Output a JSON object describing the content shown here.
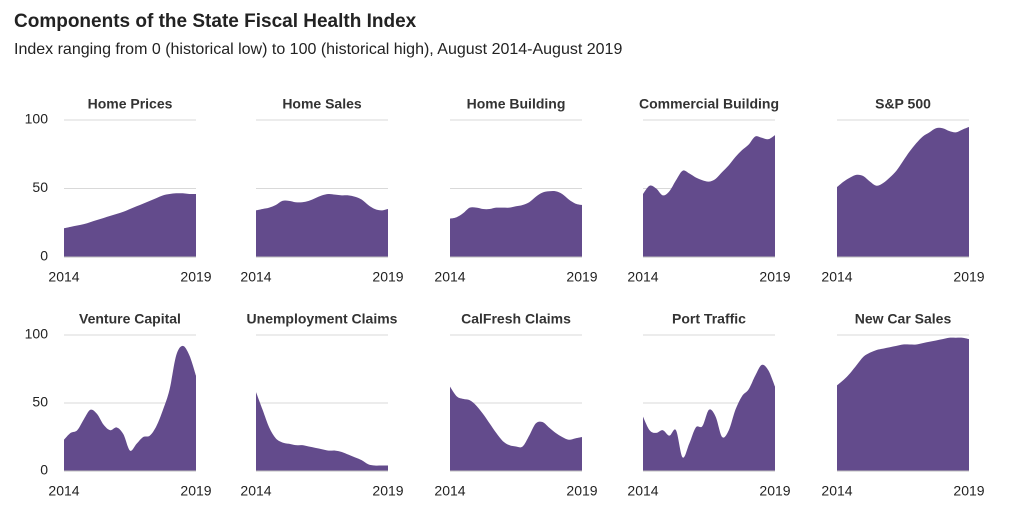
{
  "header": {
    "title": "Components of the State Fiscal Health Index",
    "subtitle": "Index ranging from 0 (historical low) to 100 (historical high), August 2014-August 2019"
  },
  "chart_data": [
    {
      "type": "area",
      "title": "Home Prices",
      "color": "#634b8c",
      "xlim": [
        2014,
        2019
      ],
      "xticks": [
        2014,
        2019
      ],
      "ylim": [
        0,
        100
      ],
      "yticks": [
        0,
        50,
        100
      ],
      "grid": true,
      "x": [
        2014,
        2014.25,
        2014.5,
        2014.75,
        2015,
        2015.25,
        2015.5,
        2015.75,
        2016,
        2016.25,
        2016.5,
        2016.75,
        2017,
        2017.25,
        2017.5,
        2017.75,
        2018,
        2018.25,
        2018.5,
        2018.75,
        2019
      ],
      "values": [
        21,
        22,
        23,
        24,
        25.5,
        27,
        28.5,
        30,
        31.5,
        33,
        35,
        37,
        39,
        41,
        43,
        45,
        46,
        46.5,
        46.5,
        46,
        46
      ]
    },
    {
      "type": "area",
      "title": "Home Sales",
      "color": "#634b8c",
      "xlim": [
        2014,
        2019
      ],
      "xticks": [
        2014,
        2019
      ],
      "ylim": [
        0,
        100
      ],
      "yticks": [
        0,
        50,
        100
      ],
      "grid": true,
      "x": [
        2014,
        2014.25,
        2014.5,
        2014.75,
        2015,
        2015.25,
        2015.5,
        2015.75,
        2016,
        2016.25,
        2016.5,
        2016.75,
        2017,
        2017.25,
        2017.5,
        2017.75,
        2018,
        2018.25,
        2018.5,
        2018.75,
        2019
      ],
      "values": [
        34,
        35,
        36,
        38,
        41,
        41,
        40,
        40,
        41,
        43,
        45,
        46,
        45.5,
        45,
        45,
        44,
        42,
        38,
        35,
        34,
        35
      ]
    },
    {
      "type": "area",
      "title": "Home Building",
      "color": "#634b8c",
      "xlim": [
        2014,
        2019
      ],
      "xticks": [
        2014,
        2019
      ],
      "ylim": [
        0,
        100
      ],
      "yticks": [
        0,
        50,
        100
      ],
      "grid": true,
      "x": [
        2014,
        2014.25,
        2014.5,
        2014.75,
        2015,
        2015.25,
        2015.5,
        2015.75,
        2016,
        2016.25,
        2016.5,
        2016.75,
        2017,
        2017.25,
        2017.5,
        2017.75,
        2018,
        2018.25,
        2018.5,
        2018.75,
        2019
      ],
      "values": [
        28,
        29,
        32,
        36,
        36,
        35,
        35,
        36,
        36,
        36,
        37,
        38,
        40,
        44,
        47,
        48,
        48,
        46,
        42,
        39,
        38
      ]
    },
    {
      "type": "area",
      "title": "Commercial Building",
      "color": "#634b8c",
      "xlim": [
        2014,
        2019
      ],
      "xticks": [
        2014,
        2019
      ],
      "ylim": [
        0,
        100
      ],
      "yticks": [
        0,
        50,
        100
      ],
      "grid": true,
      "x": [
        2014,
        2014.25,
        2014.5,
        2014.75,
        2015,
        2015.25,
        2015.5,
        2015.75,
        2016,
        2016.25,
        2016.5,
        2016.75,
        2017,
        2017.25,
        2017.5,
        2017.75,
        2018,
        2018.25,
        2018.5,
        2018.75,
        2019
      ],
      "values": [
        46,
        52,
        50,
        45,
        48,
        56,
        63,
        61,
        58,
        56,
        55,
        57,
        62,
        67,
        73,
        78,
        82,
        88,
        87,
        86,
        89
      ]
    },
    {
      "type": "area",
      "title": "S&P 500",
      "color": "#634b8c",
      "xlim": [
        2014,
        2019
      ],
      "xticks": [
        2014,
        2019
      ],
      "ylim": [
        0,
        100
      ],
      "yticks": [
        0,
        50,
        100
      ],
      "grid": true,
      "x": [
        2014,
        2014.25,
        2014.5,
        2014.75,
        2015,
        2015.25,
        2015.5,
        2015.75,
        2016,
        2016.25,
        2016.5,
        2016.75,
        2017,
        2017.25,
        2017.5,
        2017.75,
        2018,
        2018.25,
        2018.5,
        2018.75,
        2019
      ],
      "values": [
        51,
        55,
        58,
        60,
        59,
        55,
        52,
        54,
        58,
        63,
        70,
        77,
        83,
        88,
        91,
        94,
        94,
        92,
        91,
        93,
        95
      ]
    },
    {
      "type": "area",
      "title": "Venture Capital",
      "color": "#634b8c",
      "xlim": [
        2014,
        2019
      ],
      "xticks": [
        2014,
        2019
      ],
      "ylim": [
        0,
        100
      ],
      "yticks": [
        0,
        50,
        100
      ],
      "grid": true,
      "x": [
        2014,
        2014.25,
        2014.5,
        2014.75,
        2015,
        2015.25,
        2015.5,
        2015.75,
        2016,
        2016.25,
        2016.5,
        2016.75,
        2017,
        2017.25,
        2017.5,
        2017.75,
        2018,
        2018.25,
        2018.5,
        2018.75,
        2019
      ],
      "values": [
        23,
        28,
        30,
        38,
        45,
        42,
        34,
        30,
        32,
        27,
        15,
        20,
        25,
        26,
        33,
        45,
        60,
        85,
        92,
        85,
        70
      ]
    },
    {
      "type": "area",
      "title": "Unemployment Claims",
      "color": "#634b8c",
      "xlim": [
        2014,
        2019
      ],
      "xticks": [
        2014,
        2019
      ],
      "ylim": [
        0,
        100
      ],
      "yticks": [
        0,
        50,
        100
      ],
      "grid": true,
      "x": [
        2014,
        2014.25,
        2014.5,
        2014.75,
        2015,
        2015.25,
        2015.5,
        2015.75,
        2016,
        2016.25,
        2016.5,
        2016.75,
        2017,
        2017.25,
        2017.5,
        2017.75,
        2018,
        2018.25,
        2018.5,
        2018.75,
        2019
      ],
      "values": [
        58,
        45,
        32,
        24,
        21,
        20,
        19,
        19,
        18,
        17,
        16,
        15,
        15,
        14,
        12,
        10,
        8,
        5,
        4,
        4,
        4
      ]
    },
    {
      "type": "area",
      "title": "CalFresh Claims",
      "color": "#634b8c",
      "xlim": [
        2014,
        2019
      ],
      "xticks": [
        2014,
        2019
      ],
      "ylim": [
        0,
        100
      ],
      "yticks": [
        0,
        50,
        100
      ],
      "grid": true,
      "x": [
        2014,
        2014.25,
        2014.5,
        2014.75,
        2015,
        2015.25,
        2015.5,
        2015.75,
        2016,
        2016.25,
        2016.5,
        2016.75,
        2017,
        2017.25,
        2017.5,
        2017.75,
        2018,
        2018.25,
        2018.5,
        2018.75,
        2019
      ],
      "values": [
        62,
        55,
        53,
        52,
        48,
        42,
        35,
        28,
        22,
        19,
        18,
        18,
        26,
        35,
        36,
        32,
        28,
        25,
        23,
        24,
        25
      ]
    },
    {
      "type": "area",
      "title": "Port Traffic",
      "color": "#634b8c",
      "xlim": [
        2014,
        2019
      ],
      "xticks": [
        2014,
        2019
      ],
      "ylim": [
        0,
        100
      ],
      "yticks": [
        0,
        50,
        100
      ],
      "grid": true,
      "x": [
        2014,
        2014.25,
        2014.5,
        2014.75,
        2015,
        2015.25,
        2015.5,
        2015.75,
        2016,
        2016.25,
        2016.5,
        2016.75,
        2017,
        2017.25,
        2017.5,
        2017.75,
        2018,
        2018.25,
        2018.5,
        2018.75,
        2019
      ],
      "values": [
        40,
        30,
        28,
        30,
        26,
        30,
        10,
        20,
        32,
        33,
        45,
        40,
        25,
        30,
        45,
        55,
        60,
        70,
        78,
        74,
        62
      ]
    },
    {
      "type": "area",
      "title": "New Car Sales",
      "color": "#634b8c",
      "xlim": [
        2014,
        2019
      ],
      "xticks": [
        2014,
        2019
      ],
      "ylim": [
        0,
        100
      ],
      "yticks": [
        0,
        50,
        100
      ],
      "grid": true,
      "x": [
        2014,
        2014.25,
        2014.5,
        2014.75,
        2015,
        2015.25,
        2015.5,
        2015.75,
        2016,
        2016.25,
        2016.5,
        2016.75,
        2017,
        2017.25,
        2017.5,
        2017.75,
        2018,
        2018.25,
        2018.5,
        2018.75,
        2019
      ],
      "values": [
        63,
        67,
        72,
        78,
        84,
        87,
        89,
        90,
        91,
        92,
        93,
        93,
        93,
        94,
        95,
        96,
        97,
        98,
        98,
        98,
        97
      ]
    }
  ]
}
